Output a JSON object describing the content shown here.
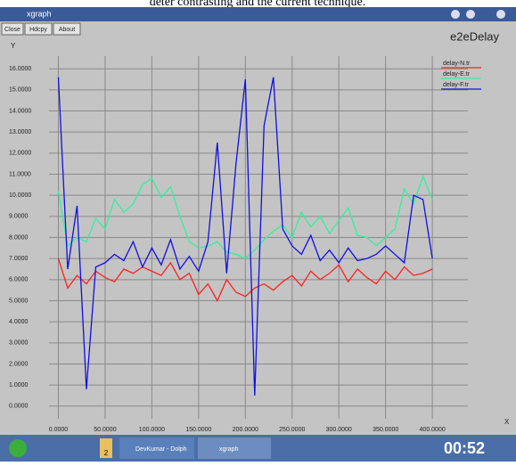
{
  "caption": "deter contrasting and the current technique.",
  "window": {
    "title": "xgraph",
    "buttons": [
      "Close",
      "Hdcpy",
      "About"
    ]
  },
  "taskbar": {
    "desktop": "2",
    "tasks": [
      "DevKumar - Dolph",
      "xgraph"
    ],
    "clock": "00:52"
  },
  "chart_data": {
    "type": "line",
    "title": "e2eDelay",
    "y_label": "Y",
    "x_label": "X",
    "x": [
      0,
      10,
      20,
      30,
      40,
      50,
      60,
      70,
      80,
      90,
      100,
      110,
      120,
      130,
      140,
      150,
      160,
      170,
      180,
      190,
      200,
      210,
      220,
      230,
      240,
      250,
      260,
      270,
      280,
      290,
      300,
      310,
      320,
      330,
      340,
      350,
      360,
      370,
      380,
      390,
      400
    ],
    "series": [
      {
        "name": "delay-N.tr",
        "color": "#ff2020",
        "values": [
          7.0,
          5.6,
          6.2,
          5.8,
          6.4,
          6.1,
          5.9,
          6.5,
          6.3,
          6.6,
          6.4,
          6.2,
          6.8,
          6.0,
          6.3,
          5.3,
          5.8,
          5.0,
          6.0,
          5.4,
          5.2,
          5.6,
          5.8,
          5.5,
          5.9,
          6.2,
          5.7,
          6.4,
          6.0,
          6.3,
          6.7,
          5.9,
          6.5,
          6.1,
          5.8,
          6.4,
          6.0,
          6.6,
          6.2,
          6.3,
          6.5
        ]
      },
      {
        "name": "delay-E.tr",
        "color": "#30f0a0",
        "values": [
          10.2,
          7.6,
          8.0,
          7.8,
          8.9,
          8.4,
          9.8,
          9.2,
          9.6,
          10.5,
          10.8,
          9.9,
          10.4,
          9.0,
          7.8,
          7.5,
          7.6,
          7.8,
          7.3,
          7.2,
          7.0,
          7.4,
          7.9,
          8.3,
          8.6,
          8.0,
          9.2,
          8.5,
          9.0,
          8.2,
          8.8,
          9.4,
          8.1,
          8.0,
          7.6,
          8.0,
          8.4,
          10.3,
          9.6,
          10.9,
          9.8
        ]
      },
      {
        "name": "delay-F.tr",
        "color": "#1010e0",
        "values": [
          15.6,
          6.5,
          9.5,
          0.8,
          6.6,
          6.8,
          7.2,
          6.9,
          7.8,
          6.6,
          7.5,
          6.7,
          7.9,
          6.5,
          7.1,
          6.4,
          7.8,
          12.5,
          6.3,
          11.5,
          15.5,
          0.5,
          13.3,
          15.6,
          8.4,
          7.6,
          7.2,
          8.1,
          6.9,
          7.4,
          6.8,
          7.5,
          6.9,
          7.0,
          7.2,
          7.6,
          7.2,
          6.8,
          10.0,
          9.8,
          7.0
        ]
      }
    ],
    "xlim": [
      -10,
      438
    ],
    "ylim": [
      -0.6,
      16.6
    ],
    "xticks": [
      {
        "value": 0,
        "label": "0.0000"
      },
      {
        "value": 50,
        "label": "50.0000"
      },
      {
        "value": 100,
        "label": "100.0000"
      },
      {
        "value": 150,
        "label": "150.0000"
      },
      {
        "value": 200,
        "label": "200.0000"
      },
      {
        "value": 250,
        "label": "250.0000"
      },
      {
        "value": 300,
        "label": "300.0000"
      },
      {
        "value": 350,
        "label": "350.0000"
      },
      {
        "value": 400,
        "label": "400.0000"
      }
    ],
    "yticks": [
      {
        "value": 0,
        "label": "0.0000"
      },
      {
        "value": 1,
        "label": "1.0000"
      },
      {
        "value": 2,
        "label": "2.0000"
      },
      {
        "value": 3,
        "label": "3.0000"
      },
      {
        "value": 4,
        "label": "4.0000"
      },
      {
        "value": 5,
        "label": "5.0000"
      },
      {
        "value": 6,
        "label": "6.0000"
      },
      {
        "value": 7,
        "label": "7.0000"
      },
      {
        "value": 8,
        "label": "8.0000"
      },
      {
        "value": 9,
        "label": "9.0000"
      },
      {
        "value": 10,
        "label": "10.0000"
      },
      {
        "value": 11,
        "label": "11.0000"
      },
      {
        "value": 12,
        "label": "12.0000"
      },
      {
        "value": 13,
        "label": "13.0000"
      },
      {
        "value": 14,
        "label": "14.0000"
      },
      {
        "value": 15,
        "label": "15.0000"
      },
      {
        "value": 16,
        "label": "16.0000"
      }
    ],
    "grid": true,
    "legend": "top-right"
  }
}
